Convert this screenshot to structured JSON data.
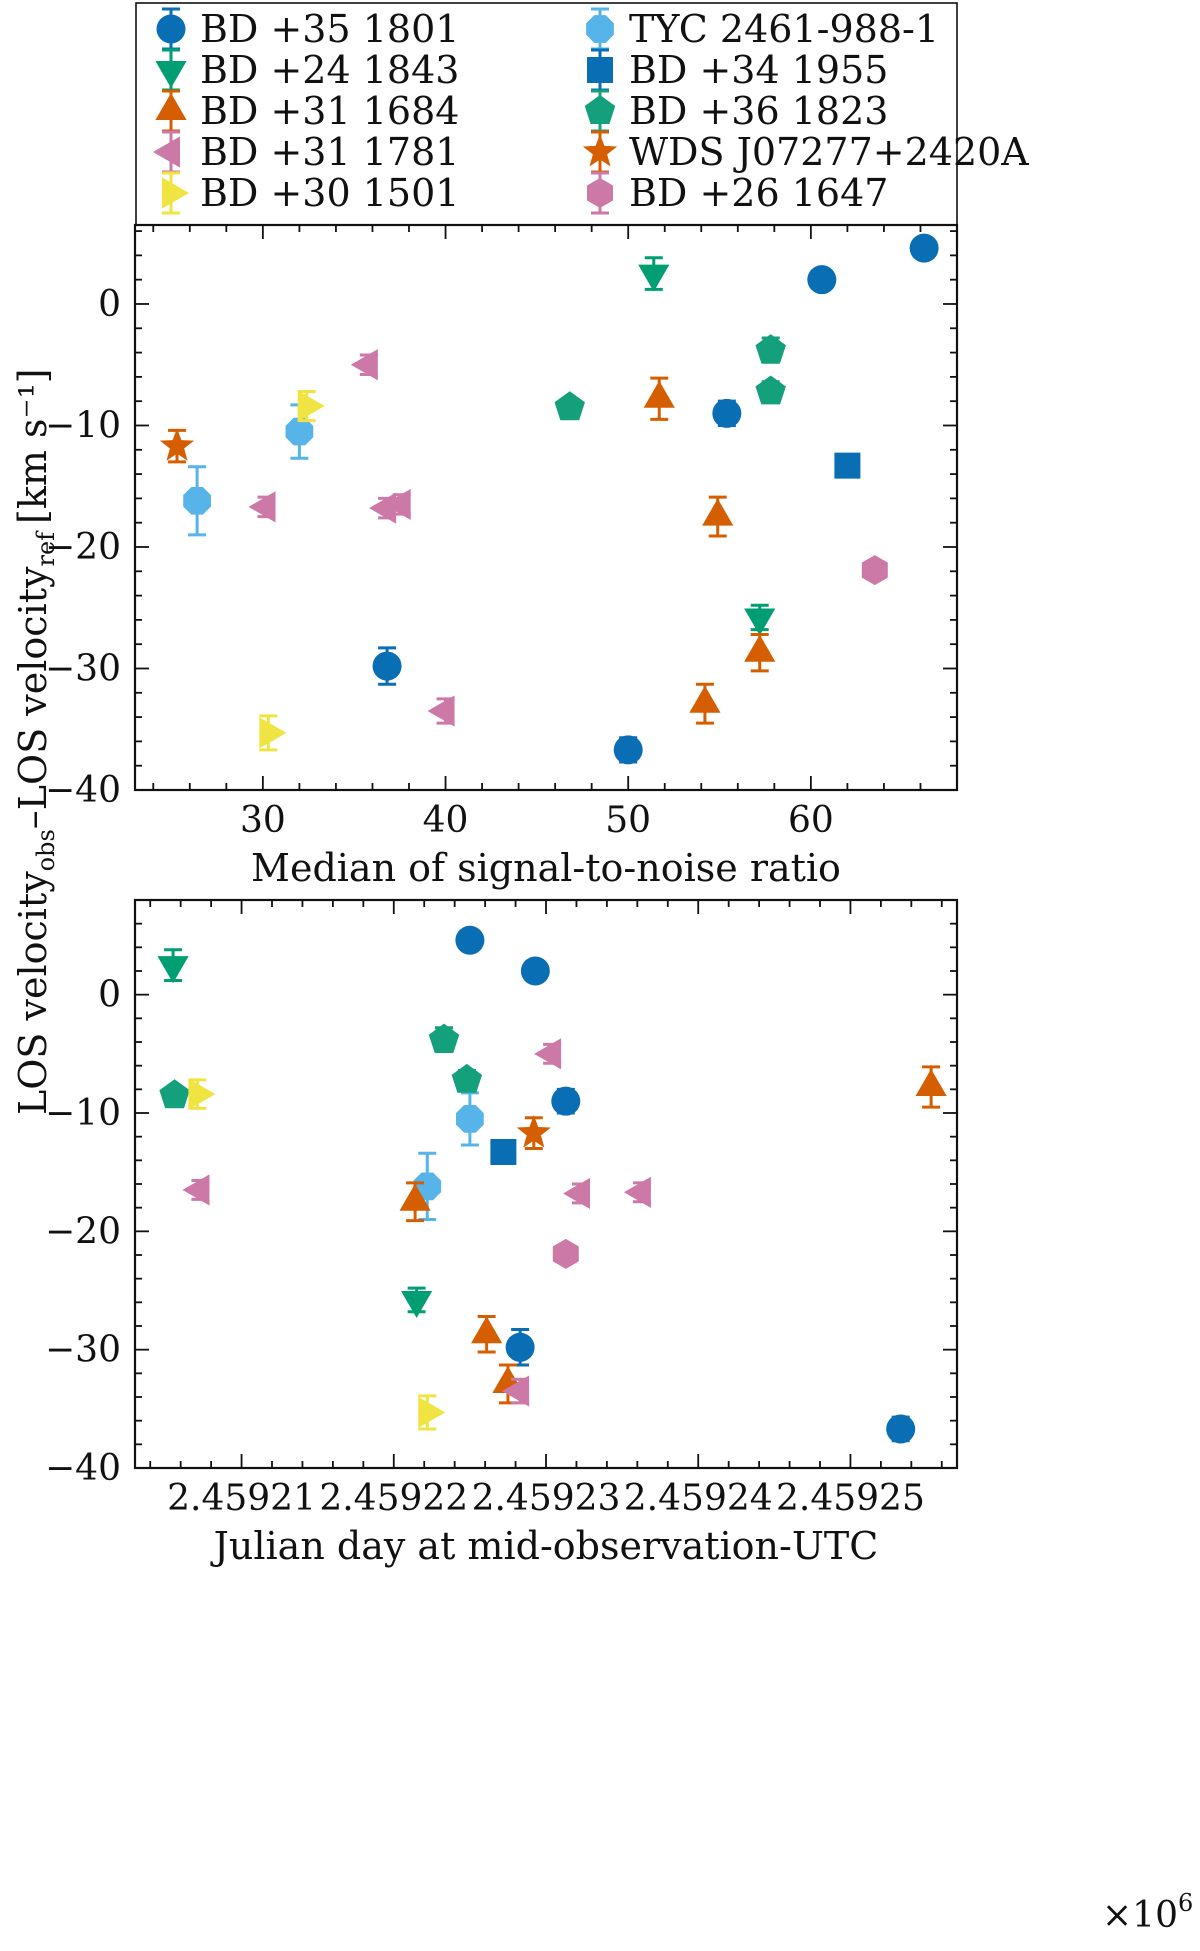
{
  "series_styles": [
    {
      "name": "BD +35 1801",
      "marker": "circle",
      "color": "#0a6eb4"
    },
    {
      "name": "TYC 2461-988-1",
      "marker": "octagon",
      "color": "#56b4e9"
    },
    {
      "name": "BD +24 1843",
      "marker": "triangle-down",
      "color": "#009e73"
    },
    {
      "name": "BD +34 1955",
      "marker": "square",
      "color": "#0a6eb4"
    },
    {
      "name": "BD +31 1684",
      "marker": "triangle-up",
      "color": "#d55e00"
    },
    {
      "name": "BD +36 1823",
      "marker": "pentagon",
      "color": "#14a07a"
    },
    {
      "name": "BD +31 1781",
      "marker": "triangle-left",
      "color": "#cc79a7"
    },
    {
      "name": "WDS J07277+2420A",
      "marker": "star",
      "color": "#d55e00"
    },
    {
      "name": "BD +30 1501",
      "marker": "triangle-right",
      "color": "#f0e442"
    },
    {
      "name": "BD +26 1647",
      "marker": "hexagon",
      "color": "#cc79a7"
    }
  ],
  "shared_ylabel_main": "LOS velocity",
  "shared_ylabel_sub1": "obs",
  "shared_ylabel_mid": "–LOS velocity",
  "shared_ylabel_sub2": "ref",
  "shared_ylabel_units": "[km s⁻¹]",
  "chart_data": [
    {
      "type": "scatter",
      "xlabel": "Median of signal-to-noise ratio",
      "ylabel": "LOS velocity_obs – LOS velocity_ref [km s^-1]",
      "xlim": [
        23,
        68
      ],
      "ylim": [
        -40,
        6.5
      ],
      "xticks": [
        30,
        40,
        50,
        60
      ],
      "xtick_labels": [
        "30",
        "40",
        "50",
        "60"
      ],
      "yticks": [
        -40,
        -30,
        -20,
        -10,
        0
      ],
      "ytick_labels": [
        "−40",
        "−30",
        "−20",
        "−10",
        "0"
      ],
      "legend": "top, two columns",
      "series": [
        {
          "name": "BD +35 1801",
          "points": [
            {
              "x": 66.2,
              "y": 4.6,
              "err": 0.6
            },
            {
              "x": 60.6,
              "y": 2.0,
              "err": 0.6
            },
            {
              "x": 55.4,
              "y": -9.0,
              "err": 1.0
            },
            {
              "x": 36.8,
              "y": -29.8,
              "err": 1.5
            },
            {
              "x": 50.0,
              "y": -36.7,
              "err": 1.0
            }
          ]
        },
        {
          "name": "TYC 2461-988-1",
          "points": [
            {
              "x": 26.4,
              "y": -16.2,
              "err": 2.8
            },
            {
              "x": 32.0,
              "y": -10.5,
              "err": 2.2
            }
          ]
        },
        {
          "name": "BD +24 1843",
          "points": [
            {
              "x": 51.4,
              "y": 2.5,
              "err": 1.3
            },
            {
              "x": 57.2,
              "y": -25.8,
              "err": 1.0
            }
          ]
        },
        {
          "name": "BD +34 1955",
          "points": [
            {
              "x": 62.0,
              "y": -13.3,
              "err": 0.6
            }
          ]
        },
        {
          "name": "BD +31 1684",
          "points": [
            {
              "x": 51.7,
              "y": -7.8,
              "err": 1.7
            },
            {
              "x": 54.9,
              "y": -17.5,
              "err": 1.6
            },
            {
              "x": 57.2,
              "y": -28.7,
              "err": 1.5
            },
            {
              "x": 54.2,
              "y": -32.9,
              "err": 1.6
            }
          ]
        },
        {
          "name": "BD +36 1823",
          "points": [
            {
              "x": 46.8,
              "y": -8.5,
              "err": 0.6
            },
            {
              "x": 57.8,
              "y": -3.8,
              "err": 1.0
            },
            {
              "x": 57.8,
              "y": -7.2,
              "err": 0.8
            }
          ]
        },
        {
          "name": "BD +31 1781",
          "points": [
            {
              "x": 35.8,
              "y": -5.0,
              "err": 0.8
            },
            {
              "x": 30.2,
              "y": -16.7,
              "err": 0.8
            },
            {
              "x": 36.8,
              "y": -16.8,
              "err": 0.8
            },
            {
              "x": 37.6,
              "y": -16.5,
              "err": 0.8
            },
            {
              "x": 40.0,
              "y": -33.5,
              "err": 1.0
            }
          ]
        },
        {
          "name": "WDS J07277+2420A",
          "points": [
            {
              "x": 25.3,
              "y": -11.7,
              "err": 1.3
            }
          ]
        },
        {
          "name": "BD +30 1501",
          "points": [
            {
              "x": 32.4,
              "y": -8.4,
              "err": 1.2
            },
            {
              "x": 30.3,
              "y": -35.3,
              "err": 1.4
            }
          ]
        },
        {
          "name": "BD +26 1647",
          "points": [
            {
              "x": 63.5,
              "y": -21.9,
              "err": 0.7
            }
          ]
        }
      ]
    },
    {
      "type": "scatter",
      "xlabel": "Julian day at mid-observation-UTC",
      "ylabel": "LOS velocity_obs – LOS velocity_ref [km s^-1]",
      "xlim": [
        2.459203,
        2.459257
      ],
      "ylim": [
        -40,
        8.0
      ],
      "xticks": [
        2.45921,
        2.45922,
        2.45923,
        2.45924,
        2.45925
      ],
      "xtick_labels": [
        "2.45921",
        "2.45922",
        "2.45923",
        "2.45924",
        "2.45925"
      ],
      "yticks": [
        -40,
        -30,
        -20,
        -10,
        0
      ],
      "ytick_labels": [
        "−40",
        "−30",
        "−20",
        "−10",
        "0"
      ],
      "x_offset_label": "×10",
      "x_offset_exponent": "6",
      "series": [
        {
          "name": "BD +35 1801",
          "points": [
            {
              "x": 2.459225,
              "y": 4.6,
              "err": 0.6
            },
            {
              "x": 2.4592293,
              "y": 2.0,
              "err": 0.6
            },
            {
              "x": 2.4592313,
              "y": -9.0,
              "err": 1.0
            },
            {
              "x": 2.4592283,
              "y": -29.8,
              "err": 1.5
            },
            {
              "x": 2.4592533,
              "y": -36.7,
              "err": 1.0
            }
          ]
        },
        {
          "name": "TYC 2461-988-1",
          "points": [
            {
              "x": 2.459225,
              "y": -10.5,
              "err": 2.2
            },
            {
              "x": 2.4592222,
              "y": -16.2,
              "err": 2.8
            }
          ]
        },
        {
          "name": "BD +24 1843",
          "points": [
            {
              "x": 2.4592055,
              "y": 2.5,
              "err": 1.3
            },
            {
              "x": 2.4592215,
              "y": -25.8,
              "err": 1.0
            }
          ]
        },
        {
          "name": "BD +34 1955",
          "points": [
            {
              "x": 2.4592272,
              "y": -13.3,
              "err": 0.6
            }
          ]
        },
        {
          "name": "BD +31 1684",
          "points": [
            {
              "x": 2.4592553,
              "y": -7.8,
              "err": 1.7
            },
            {
              "x": 2.4592214,
              "y": -17.5,
              "err": 1.6
            },
            {
              "x": 2.4592261,
              "y": -28.7,
              "err": 1.5
            },
            {
              "x": 2.4592275,
              "y": -32.9,
              "err": 1.6
            }
          ]
        },
        {
          "name": "BD +36 1823",
          "points": [
            {
              "x": 2.4592233,
              "y": -3.8,
              "err": 1.0
            },
            {
              "x": 2.4592248,
              "y": -7.2,
              "err": 0.8
            },
            {
              "x": 2.4592056,
              "y": -8.5,
              "err": 0.6
            }
          ]
        },
        {
          "name": "BD +31 1781",
          "points": [
            {
              "x": 2.4592304,
              "y": -5.0,
              "err": 0.8
            },
            {
              "x": 2.4592073,
              "y": -16.5,
              "err": 0.8
            },
            {
              "x": 2.4592323,
              "y": -16.8,
              "err": 0.8
            },
            {
              "x": 2.4592363,
              "y": -16.7,
              "err": 0.8
            },
            {
              "x": 2.4592283,
              "y": -33.5,
              "err": 1.0
            }
          ]
        },
        {
          "name": "WDS J07277+2420A",
          "points": [
            {
              "x": 2.4592292,
              "y": -11.7,
              "err": 1.3
            }
          ]
        },
        {
          "name": "BD +30 1501",
          "points": [
            {
              "x": 2.4592071,
              "y": -8.4,
              "err": 1.2
            },
            {
              "x": 2.4592222,
              "y": -35.3,
              "err": 1.4
            }
          ]
        },
        {
          "name": "BD +26 1647",
          "points": [
            {
              "x": 2.4592313,
              "y": -21.9,
              "err": 0.7
            }
          ]
        }
      ]
    }
  ]
}
